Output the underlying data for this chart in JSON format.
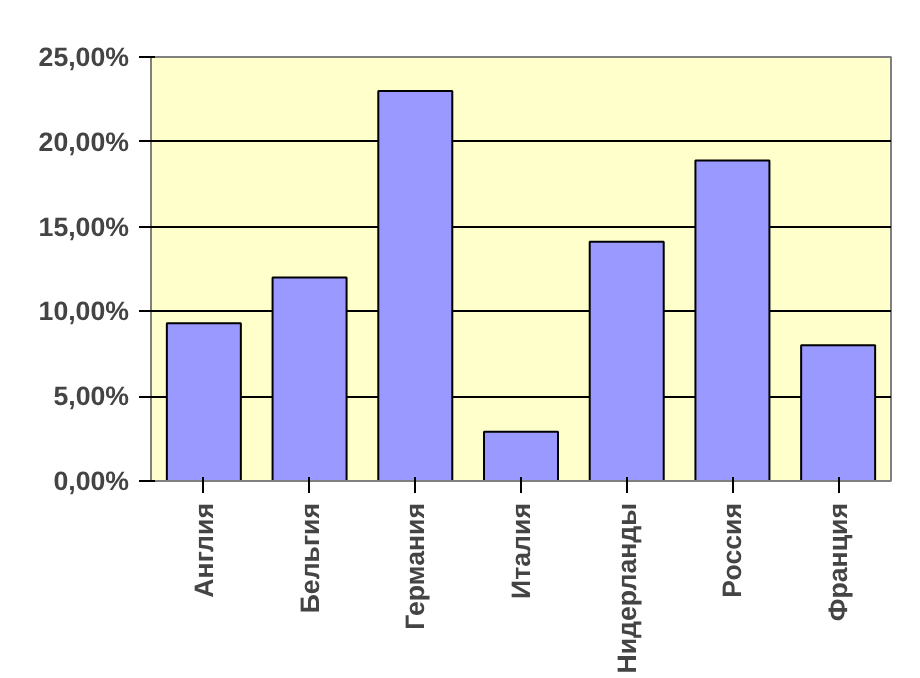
{
  "chart_data": {
    "type": "bar",
    "categories": [
      "Англия",
      "Бельгия",
      "Германия",
      "Италия",
      "Нидерланды",
      "Россия",
      "Франция"
    ],
    "values": [
      9.3,
      12.0,
      23.0,
      2.9,
      14.1,
      18.9,
      8.0
    ],
    "color": "#9999ff",
    "ylim": [
      0,
      25
    ],
    "yticks": [
      {
        "value": 0,
        "label": "0,00%"
      },
      {
        "value": 5,
        "label": "5,00%"
      },
      {
        "value": 10,
        "label": "10,00%"
      },
      {
        "value": 15,
        "label": "15,00%"
      },
      {
        "value": 20,
        "label": "20,00%"
      },
      {
        "value": 25,
        "label": "25,00%"
      }
    ],
    "grid": "y"
  }
}
